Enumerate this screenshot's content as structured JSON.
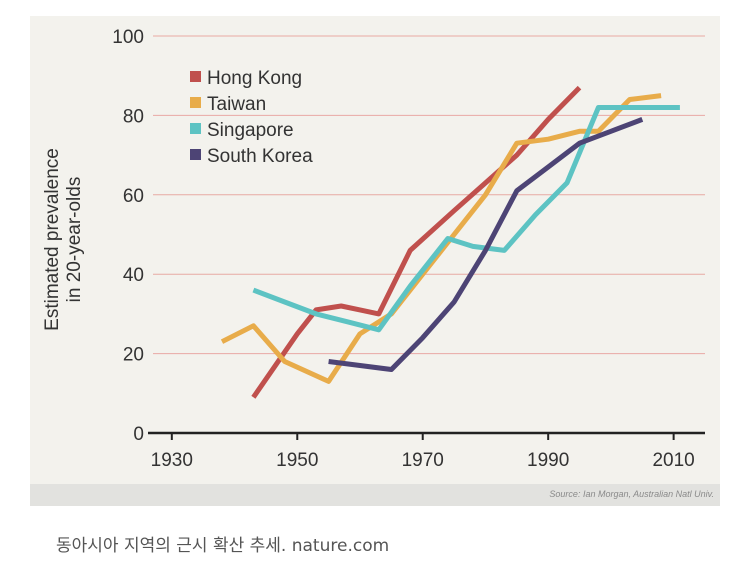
{
  "chart_data": {
    "type": "line",
    "ylabel": [
      "Estimated prevalence",
      "in 20-year-olds"
    ],
    "xlim": [
      1927,
      2015
    ],
    "ylim": [
      0,
      100
    ],
    "x_ticks": [
      1930,
      1950,
      1970,
      1990,
      2010
    ],
    "y_ticks": [
      0,
      20,
      40,
      60,
      80,
      100
    ],
    "grid": "horizontal",
    "legend_position": "top-left",
    "series": [
      {
        "name": "Hong Kong",
        "color": "#c0504d",
        "x": [
          1943,
          1950,
          1953,
          1957,
          1960,
          1963,
          1968,
          1975,
          1980,
          1985,
          1990,
          1995
        ],
        "y": [
          9,
          25,
          31,
          32,
          31,
          30,
          46,
          56,
          63,
          70,
          79,
          87
        ]
      },
      {
        "name": "Taiwan",
        "color": "#e8ac4a",
        "x": [
          1938,
          1943,
          1948,
          1955,
          1960,
          1965,
          1970,
          1975,
          1980,
          1985,
          1990,
          1995,
          1998,
          2003,
          2008
        ],
        "y": [
          23,
          27,
          18,
          13,
          25,
          30,
          40,
          50,
          60,
          73,
          74,
          76,
          76,
          84,
          85
        ]
      },
      {
        "name": "Singapore",
        "color": "#5dc3c3",
        "x": [
          1943,
          1948,
          1953,
          1958,
          1963,
          1968,
          1974,
          1978,
          1983,
          1988,
          1993,
          1998,
          2003,
          2011
        ],
        "y": [
          36,
          33,
          30,
          28,
          26,
          37,
          49,
          47,
          46,
          55,
          63,
          82,
          82,
          82
        ]
      },
      {
        "name": "South Korea",
        "color": "#4d4475",
        "x": [
          1955,
          1960,
          1965,
          1970,
          1975,
          1980,
          1985,
          1990,
          1995,
          2000,
          2005
        ],
        "y": [
          18,
          17,
          16,
          24,
          33,
          46,
          61,
          67,
          73,
          76,
          79
        ]
      }
    ]
  },
  "source": "Source: Ian Morgan, Australian Natl Univ.",
  "caption": "동아시아 지역의 근시 확산 추세. nature.com"
}
